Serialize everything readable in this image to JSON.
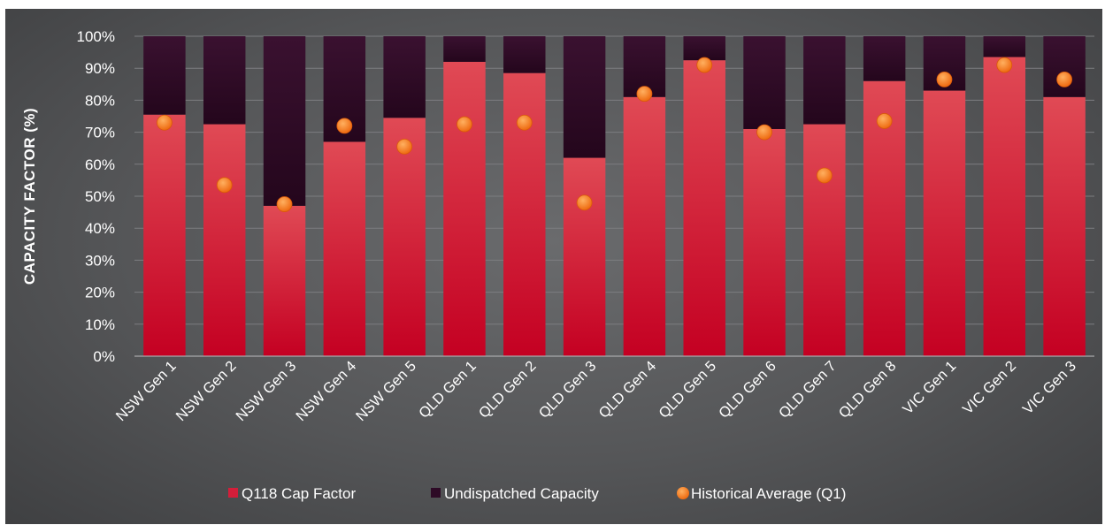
{
  "chart_data": {
    "type": "bar",
    "stacked": true,
    "title": "",
    "xlabel": "",
    "ylabel": "CAPACITY FACTOR (%)",
    "ylim": [
      0,
      100
    ],
    "y_ticks": [
      "0%",
      "10%",
      "20%",
      "30%",
      "40%",
      "50%",
      "60%",
      "70%",
      "80%",
      "90%",
      "100%"
    ],
    "grid": true,
    "legend_position": "bottom",
    "categories": [
      "NSW Gen 1",
      "NSW Gen 2",
      "NSW Gen 3",
      "NSW Gen 4",
      "NSW Gen 5",
      "QLD Gen 1",
      "QLD Gen 2",
      "QLD Gen 3",
      "QLD Gen 4",
      "QLD Gen 5",
      "QLD Gen 6",
      "QLD Gen 7",
      "QLD Gen 8",
      "VIC Gen 1",
      "VIC Gen 2",
      "VIC Gen 3"
    ],
    "series": [
      {
        "name": "Q118 Cap Factor",
        "kind": "bar",
        "color": "#d41e3a",
        "values": [
          75.5,
          72.5,
          47,
          67,
          74.5,
          92,
          88.5,
          62,
          81,
          92.5,
          71,
          72.5,
          86,
          83,
          93.5,
          81
        ]
      },
      {
        "name": "Undispatched Capacity",
        "kind": "bar",
        "color": "#2e0a26",
        "values": [
          24.5,
          27.5,
          53,
          33,
          25.5,
          8,
          11.5,
          38,
          19,
          7.5,
          29,
          27.5,
          14,
          17,
          6.5,
          19
        ]
      },
      {
        "name": "Historical Average (Q1)",
        "kind": "marker",
        "color": "#f47c20",
        "values": [
          73,
          53.5,
          47.5,
          72,
          65.5,
          72.5,
          73,
          48,
          82,
          91,
          70,
          56.5,
          73.5,
          86.5,
          91,
          86.5
        ]
      }
    ]
  }
}
